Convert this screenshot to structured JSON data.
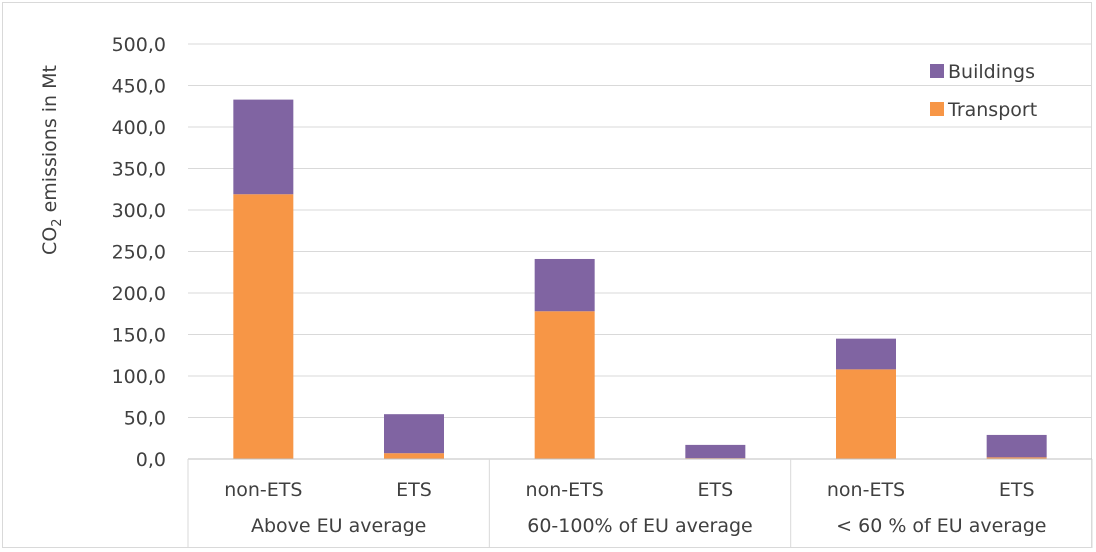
{
  "chart_data": {
    "type": "bar",
    "stacked": true,
    "ylabel": "CO2 emissions in Mt",
    "ylabel_main": "CO",
    "ylabel_sub": "2",
    "ylabel_rest": " emissions in Mt",
    "ylim": [
      0,
      500
    ],
    "yticks": [
      "0,0",
      "50,0",
      "100,0",
      "150,0",
      "200,0",
      "250,0",
      "300,0",
      "350,0",
      "400,0",
      "450,0",
      "500,0"
    ],
    "grid": true,
    "legend_position": "top-right",
    "categories": [
      "non-ETS",
      "ETS",
      "non-ETS",
      "ETS",
      "non-ETS",
      "ETS"
    ],
    "groups": [
      {
        "label": "Above EU average"
      },
      {
        "label": "60-100% of EU average"
      },
      {
        "label": "< 60 % of EU average"
      }
    ],
    "series": [
      {
        "name": "Transport",
        "color": "#f79646",
        "values": [
          319,
          7,
          178,
          1,
          108,
          2
        ]
      },
      {
        "name": "Buildings",
        "color": "#8064a2",
        "values": [
          114,
          47,
          63,
          16,
          37,
          27
        ]
      }
    ],
    "legend": [
      {
        "name": "Buildings",
        "color": "#8064a2"
      },
      {
        "name": "Transport",
        "color": "#f79646"
      }
    ]
  }
}
